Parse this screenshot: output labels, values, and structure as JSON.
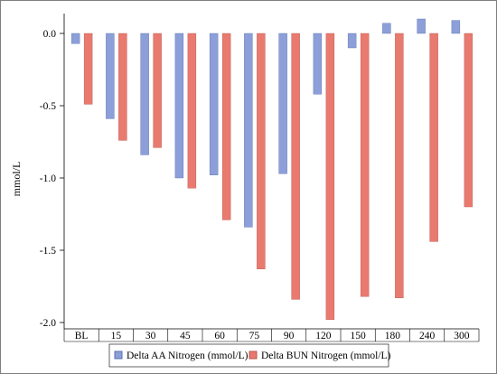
{
  "chart_data": {
    "type": "bar",
    "ylabel": "mmol/L",
    "categories": [
      "BL",
      "15",
      "30",
      "45",
      "60",
      "75",
      "90",
      "120",
      "150",
      "180",
      "240",
      "300"
    ],
    "ylim": [
      -2.0,
      0.1
    ],
    "yticks": [
      "0.0",
      "-0.5",
      "-1.0",
      "-1.5",
      "-2.0"
    ],
    "ytick_values": [
      0.0,
      -0.5,
      -1.0,
      -1.5,
      -2.0
    ],
    "grid": false,
    "legend_position": "bottom",
    "series": [
      {
        "name": "Delta AA Nitrogen (mmol/L)",
        "color": "#8c9fd9",
        "stroke": "#5a6fae",
        "values": [
          -0.07,
          -0.59,
          -0.84,
          -1.0,
          -0.98,
          -1.34,
          -0.97,
          -0.42,
          -0.1,
          0.07,
          0.1,
          0.09
        ]
      },
      {
        "name": "Delta BUN Nitrogen (mmol/L)",
        "color": "#e97a6f",
        "stroke": "#b8544a",
        "values": [
          -0.49,
          -0.74,
          -0.79,
          -1.07,
          -1.29,
          -1.63,
          -1.84,
          -1.98,
          -1.82,
          -1.83,
          -1.44,
          -1.2
        ]
      }
    ]
  }
}
